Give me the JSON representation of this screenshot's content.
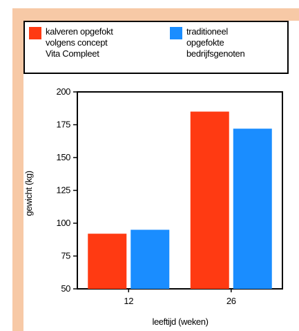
{
  "colors": {
    "frame": "#f7c9a6",
    "series_red": "#ff3a12",
    "series_blue": "#1a8dff"
  },
  "chart_data": {
    "type": "bar",
    "categories": [
      "12",
      "26"
    ],
    "series": [
      {
        "name": "kalveren opgefokt\nvolgens concept\nVita Compleet",
        "color": "#ff3a12",
        "values": [
          92,
          185
        ]
      },
      {
        "name": "traditioneel\nopgefokte\nbedrijfsgenoten",
        "color": "#1a8dff",
        "values": [
          95,
          172
        ]
      }
    ],
    "xlabel": "leeftijd (weken)",
    "ylabel": "gewicht (kg)",
    "ylim": [
      50,
      200
    ],
    "yticks": [
      50,
      75,
      100,
      125,
      150,
      175,
      200
    ],
    "grid": false,
    "legend": "top"
  }
}
